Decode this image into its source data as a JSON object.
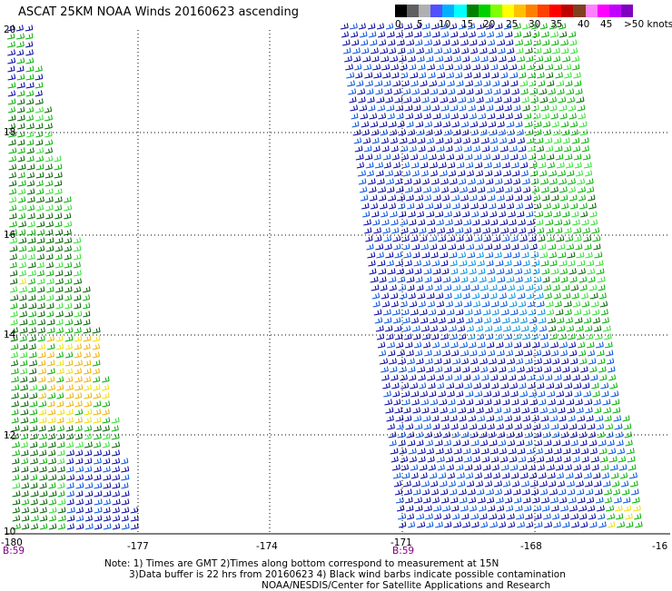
{
  "title": "ASCAT 25KM NOAA Winds 20160623 ascending",
  "colorbar": {
    "labels": [
      "0",
      "5",
      "10",
      "15",
      "20",
      "25",
      "30",
      "35",
      "40",
      "45",
      ">50 knots"
    ],
    "colors": [
      "#000000",
      "#606060",
      "#b0b0b0",
      "#5050ff",
      "#00b0ff",
      "#00ffff",
      "#008000",
      "#00d000",
      "#80ff00",
      "#ffff00",
      "#ffc000",
      "#ff8000",
      "#ff4000",
      "#ff0000",
      "#c00000",
      "#804020",
      "#ff80ff",
      "#ff00ff",
      "#c000ff",
      "#8000c0"
    ]
  },
  "map": {
    "lon_ticks": [
      "-180",
      "-177",
      "-174",
      "-171",
      "-168",
      "-16"
    ],
    "lat_ticks": [
      "20",
      "18",
      "16",
      "14",
      "12",
      "10"
    ],
    "swath_times": [
      "B:59",
      "B:59"
    ],
    "wind_colors": {
      "dark_blue": "#0000a0",
      "blue": "#0050e0",
      "light_blue": "#0090e0",
      "dark_green": "#006000",
      "green": "#00b000",
      "light_green": "#30e030",
      "yellow": "#f0e000",
      "orange": "#f0b000"
    }
  },
  "notes": [
    "Note: 1) Times are GMT 2)Times along bottom correspond to measurement at 15N",
    "3)Data buffer is 22 hrs from 20160623 4) Black wind barbs indicate possible contamination",
    "NOAA/NESDIS/Center for Satellite Applications and Research"
  ]
}
